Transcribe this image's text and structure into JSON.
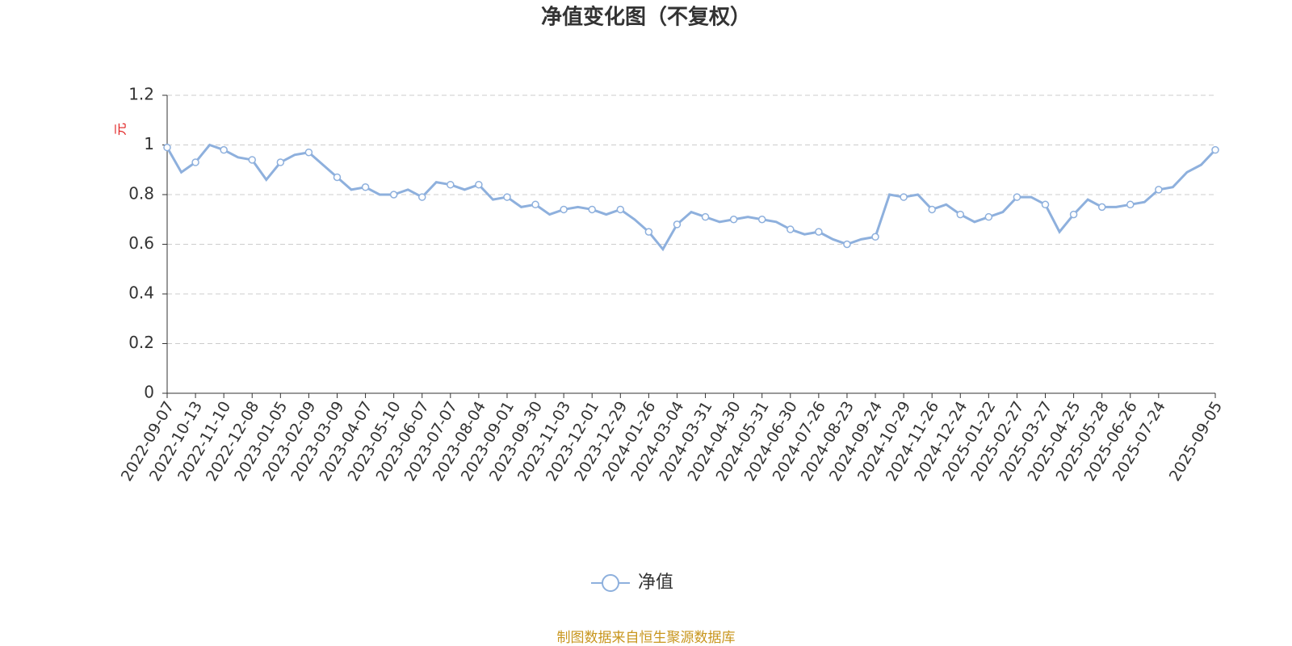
{
  "chart_data": {
    "type": "line",
    "title": "净值变化图（不复权）",
    "y_label": "元",
    "source": "制图数据来自恒生聚源数据库",
    "categories": [
      "2022-09-07",
      null,
      "2022-10-13",
      null,
      "2022-11-10",
      null,
      "2022-12-08",
      null,
      "2023-01-05",
      null,
      "2023-02-09",
      null,
      "2023-03-09",
      null,
      "2023-04-07",
      null,
      "2023-05-10",
      null,
      "2023-06-07",
      null,
      "2023-07-07",
      null,
      "2023-08-04",
      null,
      "2023-09-01",
      null,
      "2023-09-30",
      null,
      "2023-11-03",
      null,
      "2023-12-01",
      null,
      "2023-12-29",
      null,
      "2024-01-26",
      null,
      "2024-03-04",
      null,
      "2024-03-31",
      null,
      "2024-04-30",
      null,
      "2024-05-31",
      null,
      "2024-06-30",
      null,
      "2024-07-26",
      null,
      "2024-08-23",
      null,
      "2024-09-24",
      null,
      "2024-10-29",
      null,
      "2024-11-26",
      null,
      "2024-12-24",
      null,
      "2025-01-22",
      null,
      "2025-02-27",
      null,
      "2025-03-27",
      null,
      "2025-04-25",
      null,
      "2025-05-28",
      null,
      "2025-06-26",
      null,
      "2025-07-24",
      null,
      null,
      null,
      "2025-09-05"
    ],
    "series": [
      {
        "name": "净值",
        "color": "#8eb0dd",
        "values": [
          0.99,
          0.89,
          0.93,
          1.0,
          0.98,
          0.95,
          0.94,
          0.86,
          0.93,
          0.96,
          0.97,
          0.92,
          0.87,
          0.82,
          0.83,
          0.8,
          0.8,
          0.82,
          0.79,
          0.85,
          0.84,
          0.82,
          0.84,
          0.78,
          0.79,
          0.75,
          0.76,
          0.72,
          0.74,
          0.75,
          0.74,
          0.72,
          0.74,
          0.7,
          0.65,
          0.58,
          0.68,
          0.73,
          0.71,
          0.69,
          0.7,
          0.71,
          0.7,
          0.69,
          0.66,
          0.64,
          0.65,
          0.62,
          0.6,
          0.62,
          0.63,
          0.8,
          0.79,
          0.8,
          0.74,
          0.76,
          0.72,
          0.69,
          0.71,
          0.73,
          0.79,
          0.79,
          0.76,
          0.65,
          0.72,
          0.78,
          0.75,
          0.75,
          0.76,
          0.77,
          0.82,
          0.83,
          0.89,
          0.92,
          0.98
        ]
      }
    ],
    "ylim": [
      0,
      1.2
    ],
    "yticks": [
      0,
      0.2,
      0.4,
      0.6,
      0.8,
      1,
      1.2
    ],
    "grid": true,
    "legend": "bottom"
  }
}
